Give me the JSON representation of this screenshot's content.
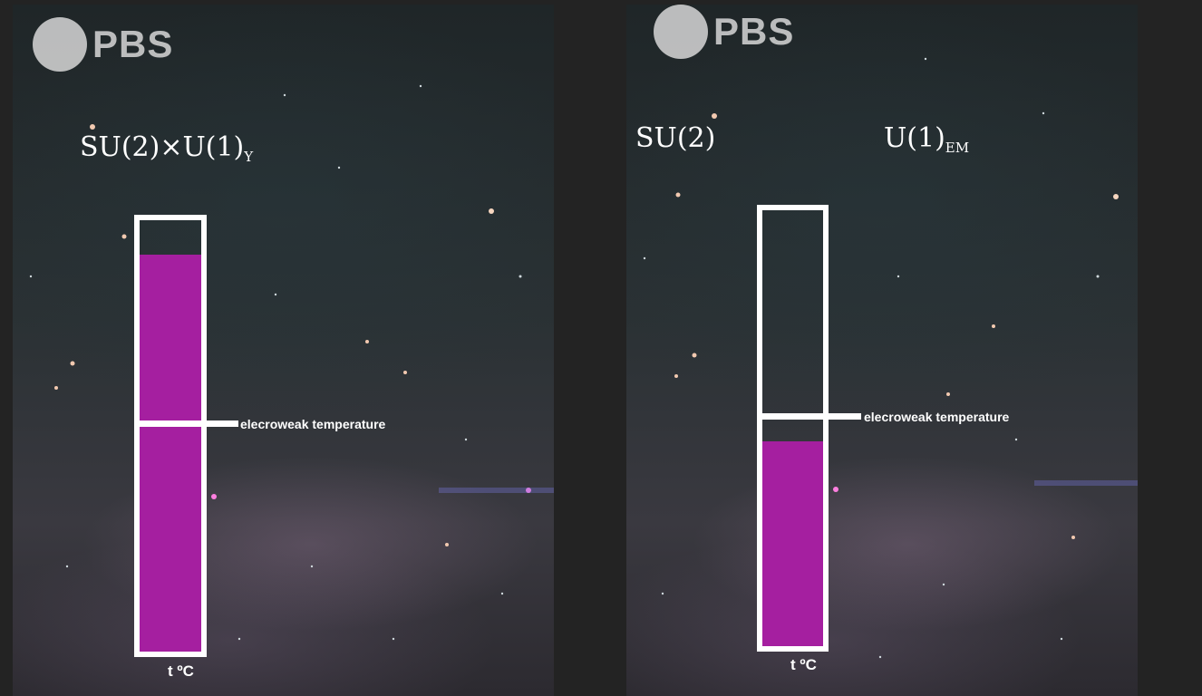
{
  "logo": {
    "text": "PBS"
  },
  "panels": [
    {
      "symmetry": {
        "main": "SU(2)×U(1)",
        "subscript": "Y"
      },
      "thermometer": {
        "fill_fraction": 0.92,
        "threshold_fraction": 0.52
      },
      "threshold_label": "elecroweak temperature",
      "axis_label": "t ºC"
    },
    {
      "symmetry_left": {
        "main": "SU(2)"
      },
      "symmetry_right": {
        "main": "U(1)",
        "subscript": "EM"
      },
      "thermometer": {
        "fill_fraction": 0.47,
        "threshold_fraction": 0.52
      },
      "threshold_label": "elecroweak temperature",
      "axis_label": "t ºC"
    }
  ],
  "colors": {
    "fill": "#a51fa0",
    "outline": "#ffffff",
    "logo": "#d7d7d7"
  }
}
